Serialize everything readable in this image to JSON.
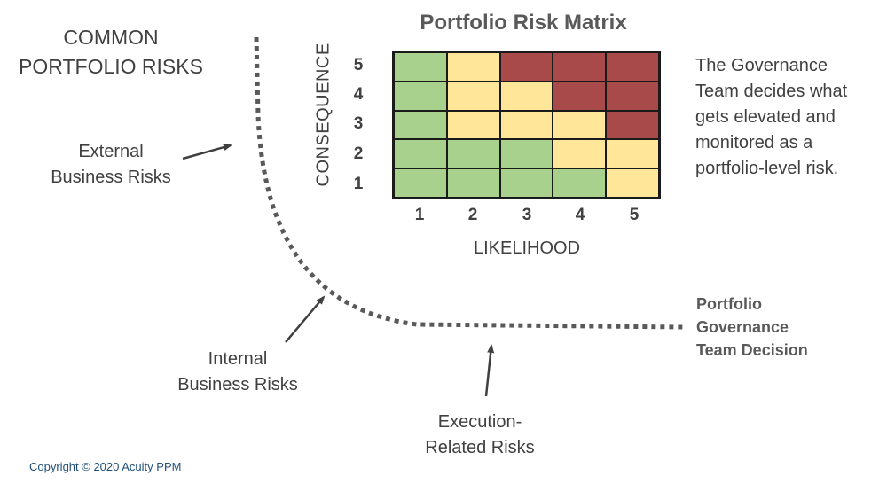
{
  "diagram": {
    "heading_line1": "COMMON",
    "heading_line2": "PORTFOLIO RISKS",
    "external_line1": "External",
    "external_line2": "Business Risks",
    "internal_line1": "Internal",
    "internal_line2": "Business Risks",
    "execution_line1": "Execution-",
    "execution_line2": "Related Risks",
    "decision_line1": "Portfolio",
    "decision_line2": "Governance",
    "decision_line3": "Team Decision",
    "note_line1": "The Governance",
    "note_line2": "Team decides what",
    "note_line3": "gets elevated and",
    "note_line4": "monitored as a",
    "note_line5": "portfolio-level risk.",
    "copyright": "Copyright © 2020 Acuity PPM"
  },
  "matrix": {
    "title": "Portfolio Risk Matrix",
    "y_label": "CONSEQUENCE",
    "x_label": "LIKELIHOOD",
    "row_labels": [
      "5",
      "4",
      "3",
      "2",
      "1"
    ],
    "col_labels": [
      "1",
      "2",
      "3",
      "4",
      "5"
    ],
    "cells": [
      [
        "low",
        "mid",
        "high",
        "high",
        "high"
      ],
      [
        "low",
        "mid",
        "mid",
        "high",
        "high"
      ],
      [
        "low",
        "mid",
        "mid",
        "mid",
        "high"
      ],
      [
        "low",
        "low",
        "low",
        "mid",
        "mid"
      ],
      [
        "low",
        "low",
        "low",
        "low",
        "mid"
      ]
    ],
    "colors": {
      "low": "#a9d18e",
      "mid": "#ffe699",
      "high": "#a84a4a"
    }
  }
}
